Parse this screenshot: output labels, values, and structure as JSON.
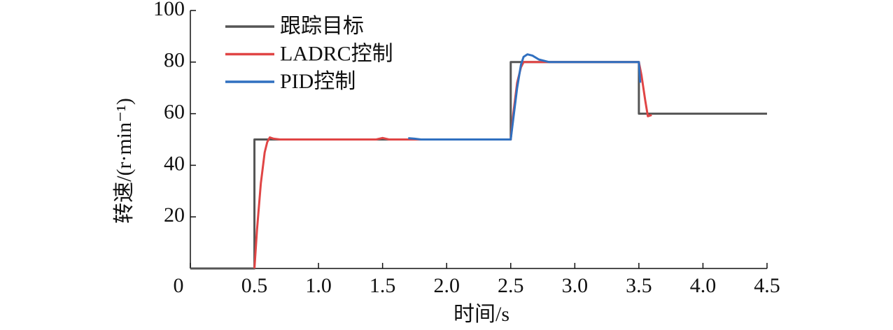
{
  "chart_data": {
    "type": "line",
    "xlabel": "时间/s",
    "ylabel": "转速/(r·min⁻¹)",
    "xlim": [
      0,
      4.5
    ],
    "ylim": [
      0,
      100
    ],
    "xticks": [
      0,
      0.5,
      {
        "value": 1,
        "label": "1.0"
      },
      1.5,
      {
        "value": 2,
        "label": "2.0"
      },
      2.5,
      {
        "value": 3,
        "label": "3.0"
      },
      3.5,
      {
        "value": 4,
        "label": "4.0"
      },
      4.5
    ],
    "yticks": [
      20,
      40,
      60,
      80,
      100
    ],
    "legend": "upper left",
    "series": [
      {
        "name": "跟踪目标",
        "color": "#555555",
        "x": [
          0,
          0.5,
          0.5,
          2.5,
          2.5,
          3.5,
          3.5,
          4.5
        ],
        "values": [
          0,
          0,
          50,
          50,
          80,
          80,
          60,
          60
        ]
      },
      {
        "name": "LADRC控制",
        "color": "#e04545",
        "x": [
          0.5,
          0.52,
          0.55,
          0.58,
          0.6,
          0.62,
          0.65,
          0.7,
          1.0,
          1.45,
          1.5,
          1.55,
          1.7,
          2.5,
          2.52,
          2.55,
          2.58,
          2.6,
          2.65,
          2.7,
          3.5,
          3.52,
          3.55,
          3.57,
          3.6
        ],
        "values": [
          0,
          15,
          33,
          45,
          49,
          50.8,
          50.3,
          50,
          50,
          50,
          50.6,
          50,
          50,
          50,
          60,
          72,
          78,
          80,
          80,
          80,
          80,
          75,
          65,
          59,
          59.5
        ]
      },
      {
        "name": "PID控制",
        "color": "#3070c0",
        "x": [
          1.7,
          1.75,
          1.8,
          2.5,
          2.52,
          2.55,
          2.58,
          2.6,
          2.63,
          2.67,
          2.72,
          2.8,
          3.5,
          3.51
        ],
        "values": [
          50.5,
          50.3,
          50,
          50,
          58,
          70,
          79,
          82,
          83,
          82.5,
          81,
          80,
          80,
          72
        ]
      }
    ]
  }
}
